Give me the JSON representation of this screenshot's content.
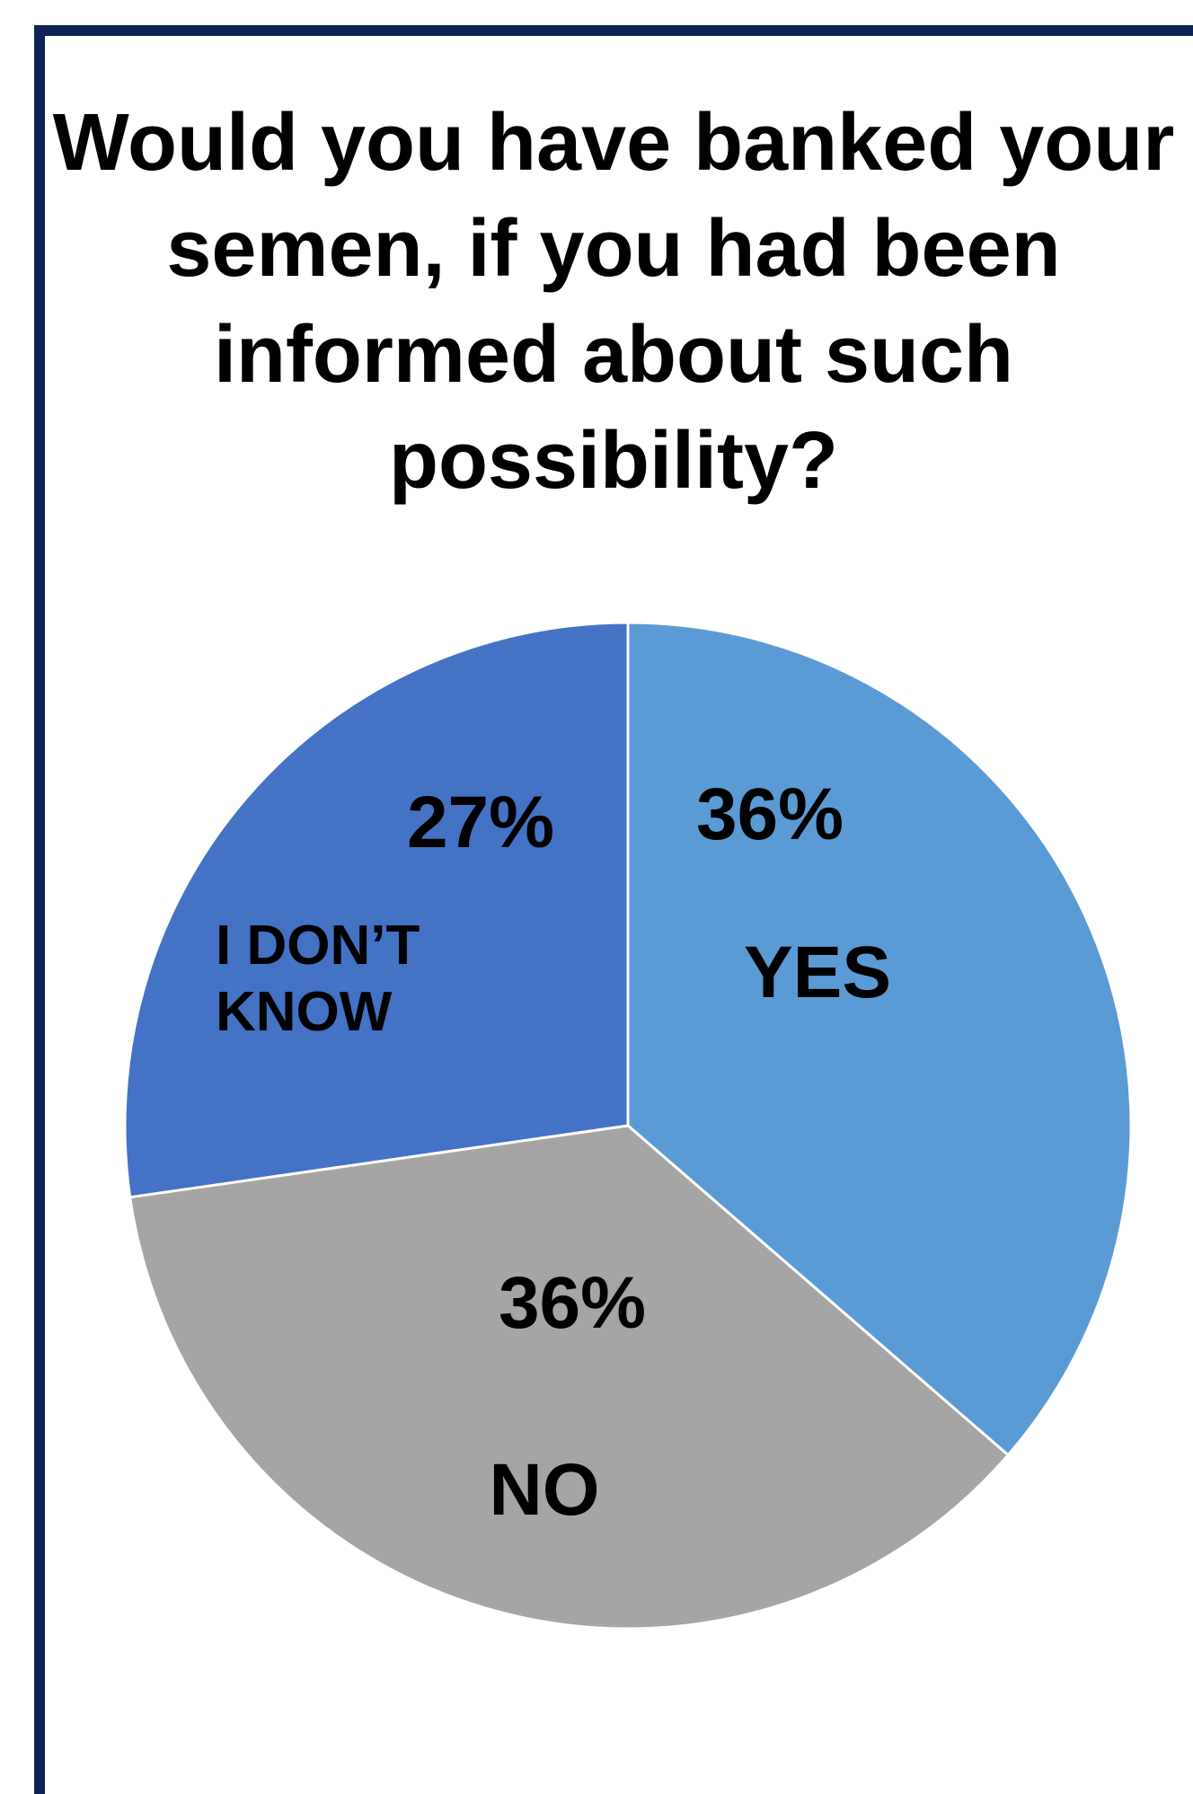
{
  "chart_data": {
    "type": "pie",
    "title": "Would you have banked your semen, if you had been informed about such possibility?",
    "categories": [
      "YES",
      "NO",
      "I DON’T KNOW"
    ],
    "values": [
      36,
      36,
      27
    ],
    "value_labels": [
      "36%",
      "36%",
      "27%"
    ],
    "colors": [
      "#5b9bd5",
      "#a5a5a5",
      "#4472c4"
    ],
    "legend": "none"
  }
}
